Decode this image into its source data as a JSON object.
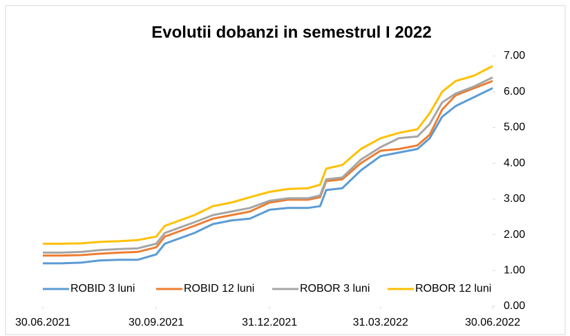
{
  "chart_data": {
    "type": "line",
    "title": "Evolutii dobanzi in semestrul I 2022",
    "x": [
      "2021-06-30",
      "2021-07-15",
      "2021-07-31",
      "2021-08-15",
      "2021-08-31",
      "2021-09-15",
      "2021-09-30",
      "2021-10-07",
      "2021-10-15",
      "2021-10-31",
      "2021-11-15",
      "2021-11-30",
      "2021-12-15",
      "2021-12-31",
      "2022-01-15",
      "2022-01-31",
      "2022-02-10",
      "2022-02-15",
      "2022-02-28",
      "2022-03-15",
      "2022-03-31",
      "2022-04-15",
      "2022-04-30",
      "2022-05-10",
      "2022-05-20",
      "2022-05-31",
      "2022-06-15",
      "2022-06-30"
    ],
    "series": [
      {
        "name": "ROBID 3 luni",
        "color": "#5b9bd5",
        "values": [
          1.2,
          1.2,
          1.22,
          1.28,
          1.3,
          1.3,
          1.45,
          1.75,
          1.85,
          2.05,
          2.3,
          2.4,
          2.45,
          2.7,
          2.75,
          2.75,
          2.8,
          3.25,
          3.3,
          3.8,
          4.2,
          4.3,
          4.4,
          4.7,
          5.3,
          5.6,
          5.85,
          6.1
        ]
      },
      {
        "name": "ROBID 12 luni",
        "color": "#ed7d31",
        "values": [
          1.42,
          1.42,
          1.43,
          1.47,
          1.5,
          1.52,
          1.65,
          1.95,
          2.05,
          2.25,
          2.45,
          2.55,
          2.65,
          2.9,
          2.98,
          2.98,
          3.05,
          3.5,
          3.55,
          4.0,
          4.35,
          4.4,
          4.5,
          4.8,
          5.5,
          5.9,
          6.1,
          6.3
        ]
      },
      {
        "name": "ROBOR 3 luni",
        "color": "#a5a5a5",
        "values": [
          1.5,
          1.5,
          1.52,
          1.57,
          1.6,
          1.62,
          1.75,
          2.05,
          2.15,
          2.35,
          2.55,
          2.65,
          2.75,
          2.95,
          3.02,
          3.02,
          3.1,
          3.55,
          3.6,
          4.1,
          4.45,
          4.7,
          4.75,
          5.1,
          5.7,
          5.95,
          6.15,
          6.4
        ]
      },
      {
        "name": "ROBOR 12 luni",
        "color": "#ffc000",
        "values": [
          1.75,
          1.75,
          1.76,
          1.8,
          1.82,
          1.85,
          1.95,
          2.25,
          2.35,
          2.55,
          2.8,
          2.9,
          3.05,
          3.2,
          3.28,
          3.3,
          3.4,
          3.85,
          3.95,
          4.4,
          4.7,
          4.85,
          4.95,
          5.4,
          6.0,
          6.3,
          6.45,
          6.72
        ]
      }
    ],
    "xlim": [
      "2021-06-30",
      "2022-06-30"
    ],
    "xticks": [
      {
        "value": "2021-06-30",
        "label": "30.06.2021"
      },
      {
        "value": "2021-09-30",
        "label": "30.09.2021"
      },
      {
        "value": "2021-12-31",
        "label": "31.12.2021"
      },
      {
        "value": "2022-03-31",
        "label": "31.03.2022"
      },
      {
        "value": "2022-06-30",
        "label": "30.06.2022"
      }
    ],
    "ylim": [
      0,
      7
    ],
    "yticks": [
      {
        "value": 0,
        "label": "0.00"
      },
      {
        "value": 1,
        "label": "1.00"
      },
      {
        "value": 2,
        "label": "2.00"
      },
      {
        "value": 3,
        "label": "3.00"
      },
      {
        "value": 4,
        "label": "4.00"
      },
      {
        "value": 5,
        "label": "5.00"
      },
      {
        "value": 6,
        "label": "6.00"
      },
      {
        "value": 7,
        "label": "7.00"
      }
    ],
    "legend": "bottom"
  }
}
